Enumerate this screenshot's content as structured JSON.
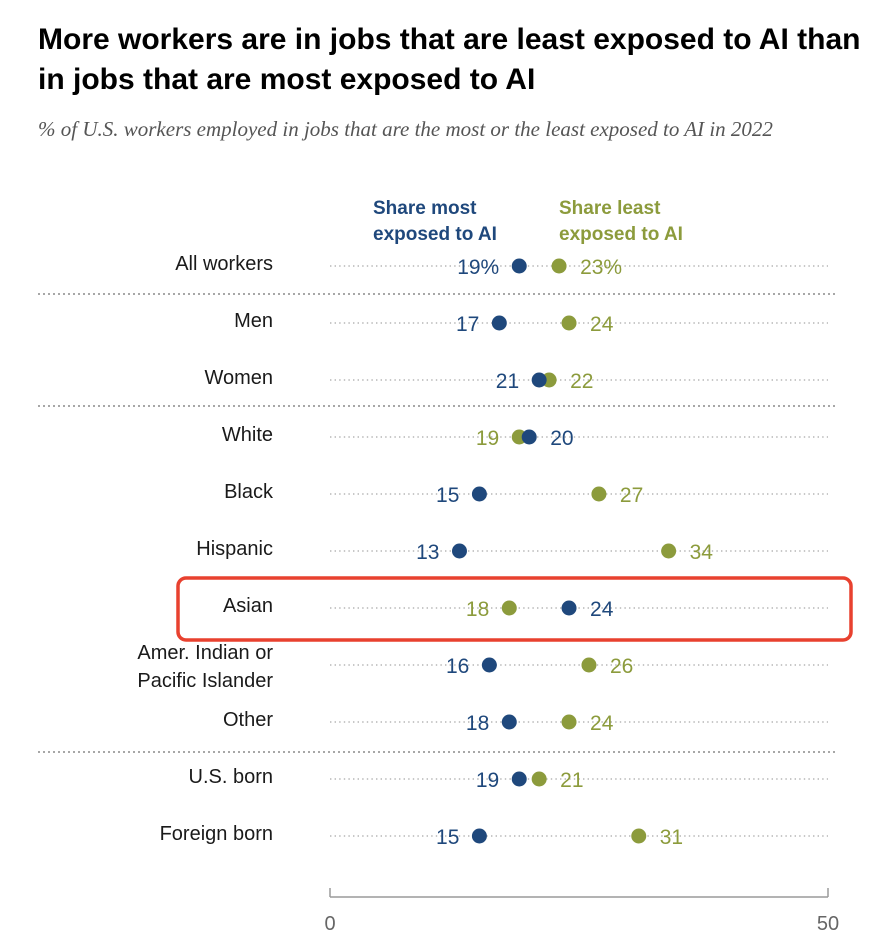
{
  "title": "More workers are in jobs that are least exposed to AI than in jobs that are most exposed to AI",
  "subtitle": "% of U.S. workers employed in jobs that are the most or the least exposed to AI in 2022",
  "colors": {
    "most": "#1f487c",
    "least": "#8c9b3c",
    "highlight": "#e8412f"
  },
  "chart_data": {
    "type": "dot",
    "title": "More workers are in jobs that are least exposed to AI than in jobs that are most exposed to AI",
    "subtitle": "% of U.S. workers employed in jobs that are the most or the least exposed to AI in 2022",
    "xlim": [
      0,
      50
    ],
    "x_ticks": [
      "0",
      "50"
    ],
    "legend": {
      "most": [
        "Share most",
        "exposed to AI"
      ],
      "least": [
        "Share least",
        "exposed to AI"
      ]
    },
    "highlighted_category": "Asian",
    "groups": [
      {
        "label": "All workers",
        "most": 19,
        "least": 23,
        "most_label": "19%",
        "least_label": "23%"
      },
      {
        "label": "Men",
        "most": 17,
        "least": 24,
        "most_label": "17",
        "least_label": "24"
      },
      {
        "label": "Women",
        "most": 21,
        "least": 22,
        "most_label": "21",
        "least_label": "22"
      },
      {
        "label": "White",
        "most": 20,
        "least": 19,
        "most_label": "20",
        "least_label": "19"
      },
      {
        "label": "Black",
        "most": 15,
        "least": 27,
        "most_label": "15",
        "least_label": "27"
      },
      {
        "label": "Hispanic",
        "most": 13,
        "least": 34,
        "most_label": "13",
        "least_label": "34"
      },
      {
        "label": "Asian",
        "most": 24,
        "least": 18,
        "most_label": "24",
        "least_label": "18"
      },
      {
        "label": "Amer. Indian or Pacific Islander",
        "label_lines": [
          "Amer. Indian or",
          "Pacific Islander"
        ],
        "most": 16,
        "least": 26,
        "most_label": "16",
        "least_label": "26"
      },
      {
        "label": "Other",
        "most": 18,
        "least": 24,
        "most_label": "18",
        "least_label": "24"
      },
      {
        "label": "U.S. born",
        "most": 19,
        "least": 21,
        "most_label": "19",
        "least_label": "21"
      },
      {
        "label": "Foreign born",
        "most": 15,
        "least": 31,
        "most_label": "15",
        "least_label": "31"
      }
    ]
  }
}
